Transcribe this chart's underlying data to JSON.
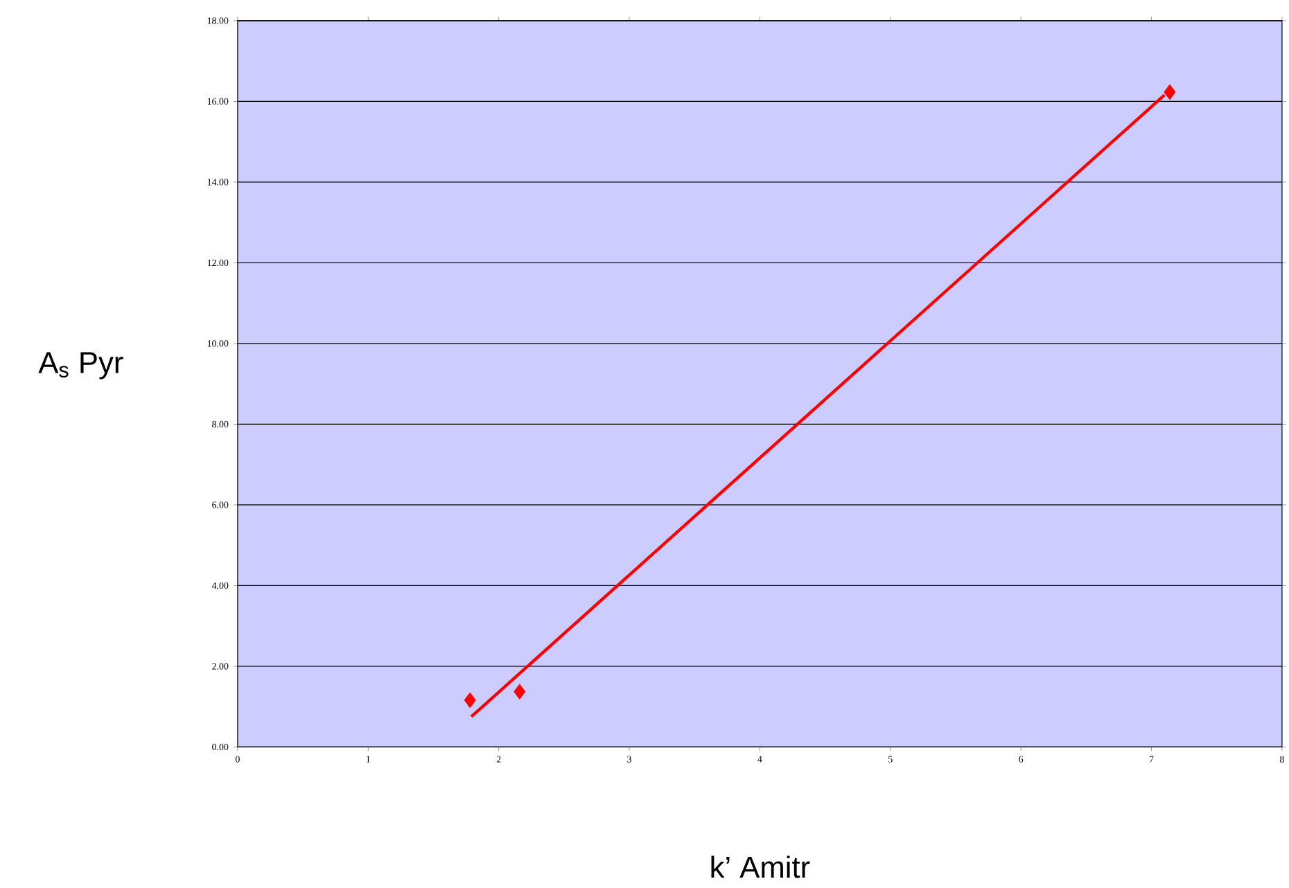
{
  "chart_data": {
    "type": "scatter",
    "xlabel": "k’ Amitr",
    "ylabel": "A$_{s}$ Pyr",
    "xlim": [
      0,
      8
    ],
    "ylim": [
      0,
      18
    ],
    "xticks": [
      0,
      1,
      2,
      3,
      4,
      5,
      6,
      7,
      8
    ],
    "yticks": [
      {
        "value": 0,
        "label": "0.00"
      },
      {
        "value": 2,
        "label": "2.00"
      },
      {
        "value": 4,
        "label": "4.00"
      },
      {
        "value": 6,
        "label": "6.00"
      },
      {
        "value": 8,
        "label": "8.00"
      },
      {
        "value": 10,
        "label": "10.00"
      },
      {
        "value": 12,
        "label": "12.00"
      },
      {
        "value": 14,
        "label": "14.00"
      },
      {
        "value": 16,
        "label": "16.00"
      },
      {
        "value": 18,
        "label": "18.00"
      }
    ],
    "grid": "y",
    "series": [
      {
        "color": "#ff0000",
        "marker": "diamond",
        "x": [
          1.78,
          2.16,
          7.14
        ],
        "values": [
          1.16,
          1.37,
          16.23
        ]
      },
      {
        "type": "line",
        "color": "#ff0000",
        "marker": "none",
        "line_style": "solid",
        "x": [
          1.79,
          7.1
        ],
        "values": [
          0.75,
          16.16
        ]
      }
    ]
  }
}
